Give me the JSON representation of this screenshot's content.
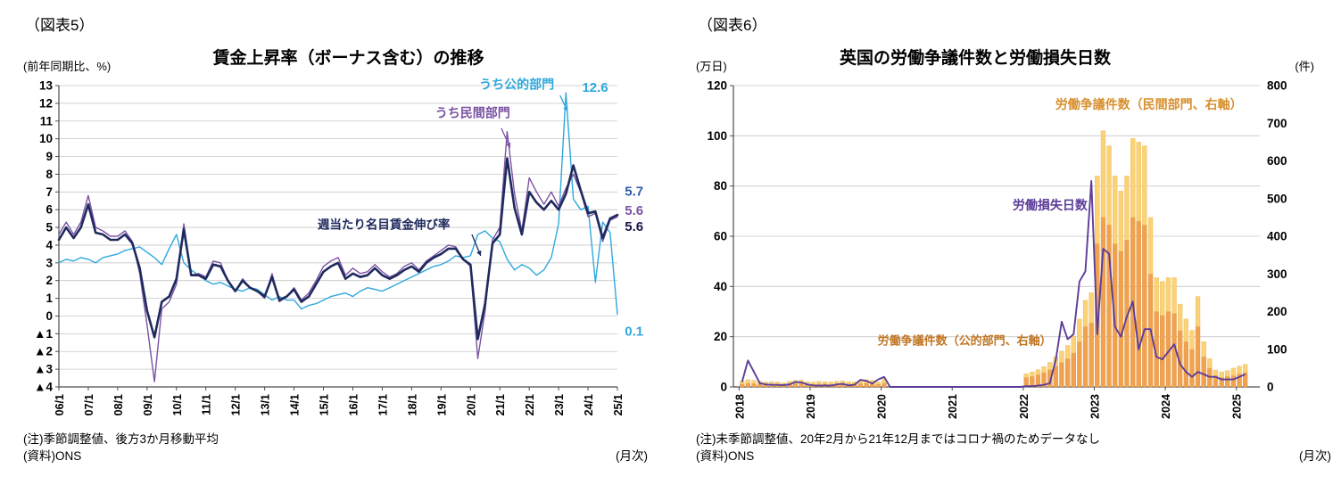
{
  "chart_data": [
    {
      "id": "fig5",
      "type": "line",
      "fig_label": "（図表5）",
      "title": "賃金上昇率（ボーナス含む）の推移",
      "y_axis_unit": "(前年同期比、%)",
      "x_axis_unit": "(月次)",
      "notes": {
        "line1": "(注)季節調整値、後方3か月移動平均",
        "line2": "(資料)ONS"
      },
      "xlim": [
        2006.0,
        2025.0
      ],
      "ylim": [
        -4,
        13
      ],
      "x_start": 2006.0,
      "x_step_years": 0.25,
      "grid": "horizontal",
      "x_tick_labels": [
        "06/1",
        "07/1",
        "08/1",
        "09/1",
        "10/1",
        "11/1",
        "12/1",
        "13/1",
        "14/1",
        "15/1",
        "16/1",
        "17/1",
        "18/1",
        "19/1",
        "20/1",
        "21/1",
        "22/1",
        "23/1",
        "24/1",
        "25/1"
      ],
      "y_tick_labels": [
        "13",
        "12",
        "11",
        "10",
        "9",
        "8",
        "7",
        "6",
        "5",
        "4",
        "3",
        "2",
        "1",
        "0",
        "▲1",
        "▲2",
        "▲3",
        "▲4"
      ],
      "series": [
        {
          "key": "public-sector",
          "name": "うち公的部門",
          "color": "#2fa8dc",
          "width": 1.4,
          "end_value": 0.1,
          "peak_value": 12.6,
          "values": [
            3.0,
            3.2,
            3.1,
            3.3,
            3.2,
            3.0,
            3.3,
            3.4,
            3.5,
            3.7,
            3.8,
            3.9,
            3.6,
            3.3,
            2.9,
            3.8,
            4.6,
            3.0,
            2.6,
            2.3,
            2.0,
            1.8,
            1.9,
            1.7,
            1.5,
            1.4,
            1.6,
            1.5,
            1.2,
            0.9,
            1.1,
            0.9,
            0.9,
            0.4,
            0.6,
            0.7,
            0.9,
            1.1,
            1.2,
            1.3,
            1.1,
            1.4,
            1.6,
            1.5,
            1.4,
            1.6,
            1.8,
            2.0,
            2.2,
            2.4,
            2.6,
            2.8,
            2.9,
            3.1,
            3.4,
            3.3,
            3.4,
            4.6,
            4.8,
            4.4,
            4.2,
            3.2,
            2.6,
            2.9,
            2.7,
            2.3,
            2.6,
            3.3,
            5.2,
            12.6,
            6.6,
            6.0,
            6.2,
            1.9,
            5.3,
            4.7,
            0.1
          ]
        },
        {
          "key": "private-sector",
          "name": "うち民間部門",
          "color": "#7b53a3",
          "width": 1.4,
          "end_value": 5.6,
          "values": [
            4.6,
            5.3,
            4.6,
            5.3,
            6.8,
            5.0,
            4.8,
            4.5,
            4.5,
            4.8,
            4.2,
            2.4,
            -0.5,
            -3.7,
            0.4,
            0.8,
            1.8,
            5.2,
            2.3,
            2.4,
            2.2,
            3.1,
            3.0,
            2.0,
            1.4,
            2.1,
            1.6,
            1.4,
            1.0,
            2.4,
            0.8,
            1.1,
            1.6,
            0.9,
            1.3,
            2.0,
            2.8,
            3.1,
            3.3,
            2.3,
            2.7,
            2.4,
            2.5,
            2.9,
            2.5,
            2.2,
            2.4,
            2.8,
            3.0,
            2.6,
            3.1,
            3.4,
            3.7,
            4.0,
            3.9,
            3.2,
            2.8,
            -2.4,
            0.3,
            4.3,
            5.0,
            10.4,
            6.9,
            4.8,
            7.8,
            7.0,
            6.3,
            7.0,
            6.2,
            7.2,
            8.0,
            7.0,
            5.6,
            5.8,
            4.2,
            5.4,
            5.6
          ]
        },
        {
          "key": "total",
          "name": "週当たり名目賃金伸び率",
          "color": "#1f2a5e",
          "width": 2.6,
          "end_value": 5.7,
          "values": [
            4.3,
            5.0,
            4.4,
            5.0,
            6.3,
            4.7,
            4.6,
            4.3,
            4.3,
            4.6,
            4.1,
            2.7,
            0.3,
            -1.2,
            0.8,
            1.1,
            2.1,
            4.9,
            2.3,
            2.3,
            2.1,
            2.9,
            2.8,
            2.0,
            1.4,
            2.0,
            1.6,
            1.4,
            1.1,
            2.2,
            0.9,
            1.1,
            1.5,
            0.8,
            1.1,
            1.8,
            2.5,
            2.8,
            3.0,
            2.1,
            2.4,
            2.2,
            2.3,
            2.7,
            2.3,
            2.1,
            2.3,
            2.6,
            2.8,
            2.5,
            3.0,
            3.3,
            3.5,
            3.8,
            3.8,
            3.2,
            2.9,
            -1.3,
            0.7,
            4.1,
            4.6,
            8.9,
            6.1,
            4.6,
            7.0,
            6.4,
            6.0,
            6.5,
            6.0,
            6.9,
            8.5,
            7.1,
            5.8,
            5.9,
            4.4,
            5.5,
            5.7
          ]
        }
      ],
      "annotations": [
        {
          "text": "うち公的部門",
          "x": 2020.3,
          "y": 13.0,
          "color": "#2fa8dc",
          "anchor": "start",
          "size": 14
        },
        {
          "text": "12.6",
          "x": 2023.8,
          "y": 12.85,
          "color": "#2fa8dc",
          "anchor": "start",
          "size": 15
        },
        {
          "text": "うち民間部門",
          "x": 2018.8,
          "y": 11.4,
          "color": "#7b53a3",
          "anchor": "start",
          "size": 14
        },
        {
          "text": "週当たり名目賃金伸び率",
          "x": 2014.8,
          "y": 5.1,
          "color": "#1f2a5e",
          "anchor": "start",
          "size": 13.5
        },
        {
          "text": "5.7",
          "x": 2025.25,
          "y": 7.0,
          "color": "#2e5ca8",
          "anchor": "start",
          "size": 15
        },
        {
          "text": "5.6",
          "x": 2025.25,
          "y": 5.9,
          "color": "#7b53a3",
          "anchor": "start",
          "size": 15
        },
        {
          "text": "5.6",
          "x": 2025.25,
          "y": 5.0,
          "color": "#17164a",
          "anchor": "start",
          "size": 15
        },
        {
          "text": "0.1",
          "x": 2025.25,
          "y": -0.9,
          "color": "#2fa8dc",
          "anchor": "start",
          "size": 15
        }
      ],
      "arrows": [
        {
          "x1": 2023.05,
          "y1": 12.45,
          "x2": 2023.3,
          "y2": 11.55,
          "color": "#2fa8dc"
        },
        {
          "x1": 2021.05,
          "y1": 10.6,
          "x2": 2021.35,
          "y2": 9.5,
          "color": "#7b53a3"
        },
        {
          "x1": 2020.05,
          "y1": 4.6,
          "x2": 2020.35,
          "y2": 3.4,
          "color": "#1f2a5e"
        }
      ]
    },
    {
      "id": "fig6",
      "type": "bar+line",
      "fig_label": "（図表6）",
      "title": "英国の労働争議件数と労働損失日数",
      "y_left_unit": "(万日)",
      "y_right_unit": "(件)",
      "x_axis_unit": "(月次)",
      "notes": {
        "line1": "(注)未季節調整値、20年2月から21年12月まではコロナ禍のためデータなし",
        "line2": "(資料)ONS"
      },
      "xlim": [
        2017.92,
        2025.33
      ],
      "ylim_left": [
        0,
        120
      ],
      "ylim_right": [
        0,
        800
      ],
      "x_start": 2018.0,
      "months": 86,
      "grid": "horizontal",
      "x_tick_labels": [
        "2018",
        "2019",
        "2020",
        "2021",
        "2022",
        "2023",
        "2024",
        "2025"
      ],
      "y_left_ticks": [
        0,
        20,
        40,
        60,
        80,
        100,
        120
      ],
      "y_right_ticks": [
        0,
        100,
        200,
        300,
        400,
        500,
        600,
        700,
        800
      ],
      "line_series": [
        {
          "key": "days-lost",
          "name": "労働損失日数",
          "axis": "left",
          "color": "#5c3d99",
          "width": 1.9,
          "values": [
            2,
            10.5,
            6,
            1.5,
            1,
            0.8,
            0.8,
            0.7,
            1,
            2,
            1.8,
            1,
            0.6,
            0.5,
            0.6,
            0.5,
            1,
            1.2,
            0.6,
            0.9,
            2.8,
            2.4,
            1.4,
            3,
            4,
            0,
            0,
            0,
            0,
            0,
            0,
            0,
            0,
            0,
            0,
            0,
            0,
            0,
            0,
            0,
            0,
            0,
            0,
            0,
            0,
            0,
            0,
            0,
            0.3,
            0.3,
            0.5,
            0.8,
            1.5,
            11,
            26,
            19,
            21,
            42,
            46,
            82,
            21,
            55,
            53,
            24,
            20,
            28,
            34,
            15,
            23,
            23,
            12,
            11,
            14,
            17,
            9,
            6,
            4,
            6,
            5,
            4,
            4,
            3,
            3,
            3,
            4,
            5
          ]
        }
      ],
      "bar_series": [
        {
          "key": "disputes-private",
          "name": "労働争議件数（民間部門、右軸）",
          "axis": "right",
          "color": "#f0a24e",
          "stack_order": 1,
          "values": [
            8,
            10,
            9,
            8,
            7,
            8,
            7,
            6,
            8,
            9,
            10,
            8,
            7,
            8,
            8,
            7,
            8,
            9,
            8,
            7,
            9,
            10,
            9,
            7,
            10,
            0,
            0,
            0,
            0,
            0,
            0,
            0,
            0,
            0,
            0,
            0,
            0,
            0,
            0,
            0,
            0,
            0,
            0,
            0,
            0,
            0,
            0,
            0,
            25,
            28,
            32,
            38,
            45,
            55,
            65,
            75,
            90,
            120,
            160,
            170,
            380,
            450,
            430,
            380,
            360,
            390,
            450,
            440,
            430,
            300,
            200,
            190,
            200,
            195,
            150,
            120,
            100,
            160,
            80,
            50,
            30,
            25,
            28,
            30,
            35,
            38
          ]
        },
        {
          "key": "disputes-public",
          "name": "労働争議件数（公的部門、右軸）",
          "axis": "right",
          "color": "#fbd277",
          "stack_order": 2,
          "values": [
            8,
            9,
            8,
            7,
            6,
            6,
            6,
            5,
            7,
            8,
            8,
            6,
            6,
            7,
            6,
            6,
            7,
            7,
            6,
            6,
            8,
            9,
            8,
            6,
            12,
            0,
            0,
            0,
            0,
            0,
            0,
            0,
            0,
            0,
            0,
            0,
            0,
            0,
            0,
            0,
            0,
            0,
            0,
            0,
            0,
            0,
            0,
            0,
            10,
            12,
            14,
            16,
            20,
            25,
            30,
            35,
            45,
            60,
            70,
            80,
            180,
            230,
            210,
            180,
            160,
            170,
            210,
            210,
            210,
            150,
            90,
            90,
            90,
            95,
            70,
            60,
            50,
            80,
            40,
            25,
            15,
            15,
            15,
            20,
            20,
            22
          ]
        }
      ],
      "annotations": [
        {
          "text": "労働争議件数（民間部門、右軸）",
          "x": 2022.45,
          "y": 112,
          "color": "#d78f2c",
          "anchor": "start",
          "size": 14
        },
        {
          "text": "労働損失日数",
          "x": 2021.85,
          "y": 72,
          "color": "#5c3d99",
          "anchor": "start",
          "size": 14
        },
        {
          "text": "労働争議件数（公的部門、右軸）",
          "x": 2019.95,
          "y": 18,
          "color": "#c07522",
          "anchor": "start",
          "size": 13
        }
      ]
    }
  ]
}
